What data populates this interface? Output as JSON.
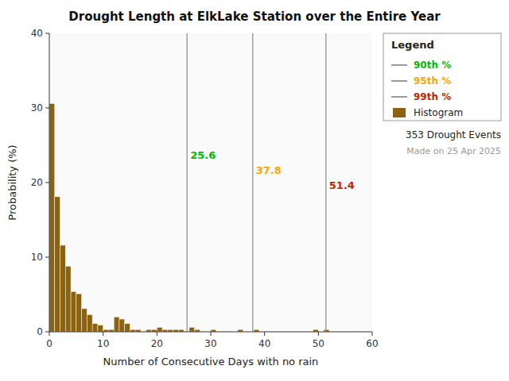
{
  "chart_data": {
    "type": "histogram",
    "title": "Drought Length at ElkLake Station over the Entire Year",
    "x_label": "Number of Consecutive Days with no rain",
    "y_label": "Probability (%)",
    "xlim": [
      0,
      60
    ],
    "ylim": [
      0,
      40
    ],
    "xticks": [
      0,
      10,
      20,
      30,
      40,
      50,
      60
    ],
    "yticks": [
      0,
      10,
      20,
      30,
      40
    ],
    "grid": false,
    "legend": "right",
    "legend_title": "Legend",
    "bins": [
      0,
      1,
      2,
      3,
      4,
      5,
      6,
      7,
      8,
      9,
      10,
      11,
      12,
      13,
      14,
      15,
      16,
      17,
      18,
      19,
      20,
      21,
      22,
      23,
      24,
      25,
      26,
      27,
      28,
      29,
      30,
      31,
      32,
      33,
      34,
      35,
      36,
      37,
      38,
      39,
      40,
      41,
      42,
      43,
      44,
      45,
      46,
      47,
      48,
      49,
      50,
      51,
      52,
      53,
      54,
      55,
      56,
      57,
      58,
      59,
      60
    ],
    "series": [
      {
        "name": "90th %",
        "type": "vline",
        "color": "#00BB00",
        "x": 25.6,
        "data_labels": true
      },
      {
        "name": "95th %",
        "type": "vline",
        "color": "#FFA500",
        "x": 37.8,
        "data_labels": true
      },
      {
        "name": "99th %",
        "type": "vline",
        "color": "#CC2200",
        "x": 51.4,
        "data_labels": true
      },
      {
        "name": "Histogram",
        "type": "bar",
        "color": "#8B6310",
        "values": [
          30.6,
          18.1,
          11.6,
          8.8,
          5.4,
          5.1,
          3.1,
          2.3,
          1.1,
          0.9,
          0.3,
          0.3,
          2.0,
          1.7,
          1.1,
          0.3,
          0.3,
          0.0,
          0.3,
          0.3,
          0.6,
          0.3,
          0.3,
          0.3,
          0.3,
          0.0,
          0.6,
          0.3,
          0.0,
          0.0,
          0.3,
          0.0,
          0.0,
          0.0,
          0.0,
          0.3,
          0.0,
          0.0,
          0.3,
          0.0,
          0.0,
          0.0,
          0.0,
          0.0,
          0.0,
          0.0,
          0.0,
          0.0,
          0.0,
          0.3,
          0.0,
          0.3,
          0.0,
          0.0,
          0.0,
          0.0,
          0.0,
          0.0,
          0.0,
          0.0
        ]
      }
    ],
    "annotations": [
      "353 Drought Events",
      "Made on 25 Apr 2025"
    ]
  }
}
